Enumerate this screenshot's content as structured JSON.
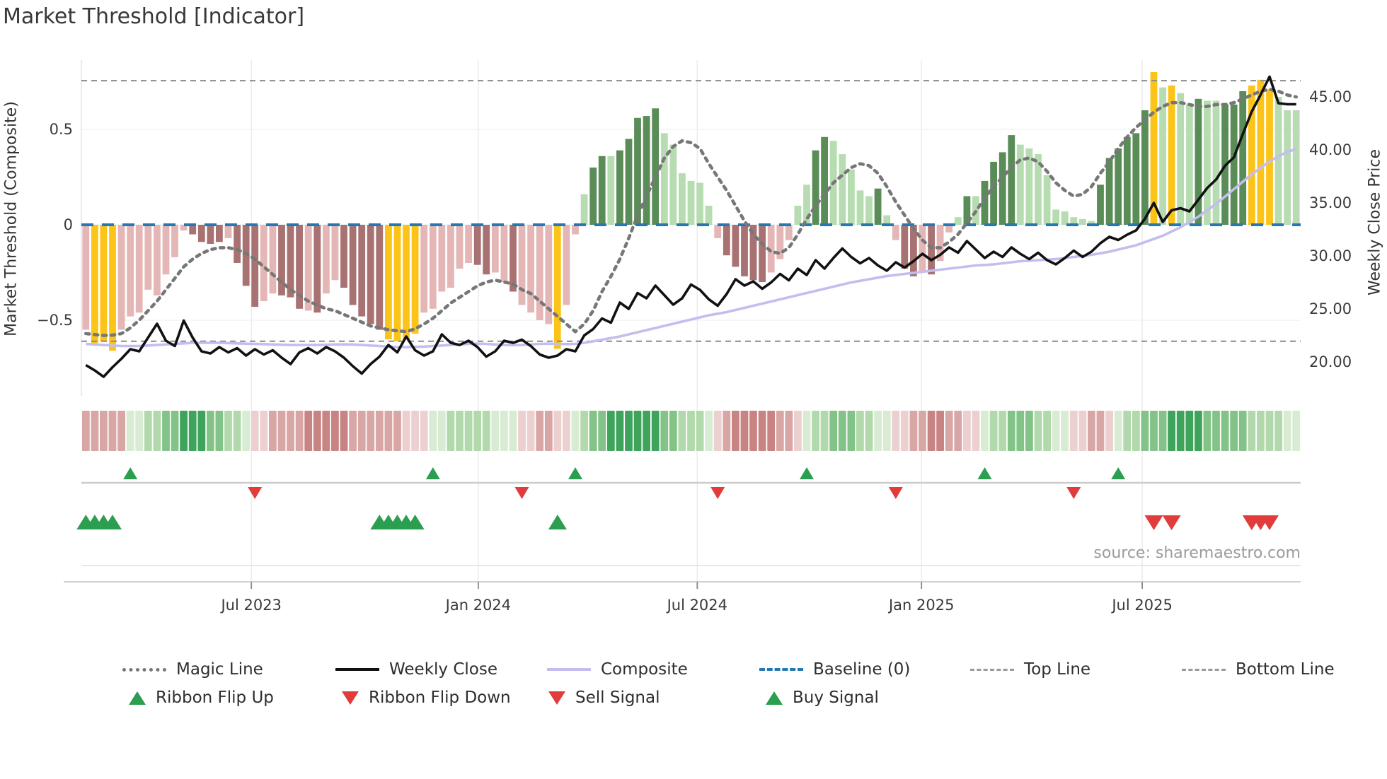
{
  "title": "Market Threshold [Indicator]",
  "source": "source: sharemaestro.com",
  "axes": {
    "left": {
      "label": "Market Threshold (Composite)",
      "ticks": [
        "0.5",
        "0",
        "−0.5"
      ],
      "tick_values": [
        0.5,
        0,
        -0.5
      ]
    },
    "right": {
      "label": "Weekly Close Price",
      "ticks": [
        "45.00",
        "40.00",
        "35.00",
        "30.00",
        "25.00",
        "20.00"
      ],
      "tick_values": [
        45,
        40,
        35,
        30,
        25,
        20
      ]
    },
    "x": {
      "ticks": [
        "Jul 2023",
        "Jan 2024",
        "Jul 2024",
        "Jan 2025",
        "Jul 2025"
      ],
      "tick_indices": [
        18.6,
        44.1,
        68.7,
        93.9,
        118.7
      ]
    }
  },
  "colors": {
    "bar": {
      "lp": "#e5b6b6",
      "dp": "#a87272",
      "lg": "#b7dcb1",
      "dg": "#5a8c58",
      "y": "#fcc419"
    },
    "ribbon": {
      "-3": "#c88383",
      "-2": "#d9a6a6",
      "-1": "#ecd0d0",
      "1": "#d8ecd3",
      "2": "#b2d9ac",
      "3": "#84c388",
      "4": "#3fa45b"
    },
    "magic_line": "#777777",
    "weekly_close": "#111111",
    "composite": "#c3bdf0",
    "baseline": "#2678b2",
    "guide_lines": "#8a8a8a",
    "signal_up": "#2b9e4f",
    "signal_down": "#e23b3b"
  },
  "chart_data": {
    "type": "combo",
    "frequency": "weekly",
    "ylim_left": [
      -0.9,
      0.87
    ],
    "ylim_right": [
      18,
      48.5
    ],
    "baseline": 0,
    "top_line": 0.755,
    "bottom_line": -0.61,
    "bars": {
      "values": [
        -0.55,
        -0.62,
        -0.61,
        -0.66,
        -0.55,
        -0.48,
        -0.46,
        -0.34,
        -0.37,
        -0.26,
        -0.17,
        -0.03,
        -0.05,
        -0.09,
        -0.1,
        -0.09,
        -0.07,
        -0.2,
        -0.32,
        -0.43,
        -0.4,
        -0.36,
        -0.37,
        -0.38,
        -0.44,
        -0.45,
        -0.46,
        -0.36,
        -0.29,
        -0.33,
        -0.42,
        -0.48,
        -0.52,
        -0.55,
        -0.6,
        -0.61,
        -0.6,
        -0.57,
        -0.46,
        -0.44,
        -0.35,
        -0.33,
        -0.23,
        -0.2,
        -0.21,
        -0.26,
        -0.25,
        -0.3,
        -0.35,
        -0.42,
        -0.46,
        -0.5,
        -0.52,
        -0.65,
        -0.42,
        -0.05,
        0.16,
        0.3,
        0.36,
        0.36,
        0.39,
        0.45,
        0.56,
        0.57,
        0.61,
        0.48,
        0.42,
        0.27,
        0.23,
        0.22,
        0.1,
        -0.07,
        -0.16,
        -0.22,
        -0.27,
        -0.29,
        -0.3,
        -0.25,
        -0.18,
        -0.08,
        0.1,
        0.21,
        0.39,
        0.46,
        0.44,
        0.37,
        0.29,
        0.18,
        0.15,
        0.19,
        0.05,
        -0.08,
        -0.23,
        -0.27,
        -0.25,
        -0.26,
        -0.19,
        -0.04,
        0.04,
        0.15,
        0.15,
        0.23,
        0.33,
        0.38,
        0.47,
        0.42,
        0.4,
        0.37,
        0.26,
        0.08,
        0.07,
        0.04,
        0.03,
        0.02,
        0.21,
        0.35,
        0.4,
        0.46,
        0.48,
        0.6,
        0.8,
        0.72,
        0.73,
        0.69,
        0.63,
        0.66,
        0.65,
        0.65,
        0.63,
        0.63,
        0.7,
        0.73,
        0.76,
        0.71,
        0.67,
        0.6,
        0.6
      ],
      "colors": [
        "lp",
        "y",
        "y",
        "y",
        "lp",
        "lp",
        "lp",
        "lp",
        "lp",
        "lp",
        "lp",
        "lp",
        "dp",
        "dp",
        "dp",
        "dp",
        "lp",
        "dp",
        "dp",
        "dp",
        "lp",
        "lp",
        "dp",
        "dp",
        "dp",
        "lp",
        "dp",
        "lp",
        "lp",
        "dp",
        "dp",
        "dp",
        "dp",
        "dp",
        "y",
        "y",
        "y",
        "y",
        "lp",
        "lp",
        "lp",
        "lp",
        "lp",
        "lp",
        "dp",
        "dp",
        "lp",
        "lp",
        "dp",
        "lp",
        "lp",
        "lp",
        "lp",
        "y",
        "lp",
        "lp",
        "lg",
        "dg",
        "dg",
        "lg",
        "dg",
        "dg",
        "dg",
        "dg",
        "dg",
        "lg",
        "lg",
        "lg",
        "lg",
        "lg",
        "lg",
        "lp",
        "dp",
        "dp",
        "dp",
        "dp",
        "dp",
        "lp",
        "lp",
        "lp",
        "lg",
        "lg",
        "dg",
        "dg",
        "lg",
        "lg",
        "lg",
        "lg",
        "lg",
        "dg",
        "lg",
        "lp",
        "dp",
        "dp",
        "lp",
        "dp",
        "lp",
        "lp",
        "lg",
        "dg",
        "lg",
        "dg",
        "dg",
        "dg",
        "dg",
        "lg",
        "lg",
        "lg",
        "lg",
        "lg",
        "lg",
        "lg",
        "lg",
        "lg",
        "dg",
        "dg",
        "dg",
        "dg",
        "dg",
        "dg",
        "y",
        "lg",
        "y",
        "lg",
        "lg",
        "dg",
        "lg",
        "lg",
        "dg",
        "dg",
        "dg",
        "y",
        "y",
        "y",
        "lg",
        "lg",
        "lg"
      ]
    },
    "magic_line": [
      -0.57,
      -0.575,
      -0.58,
      -0.578,
      -0.57,
      -0.54,
      -0.5,
      -0.45,
      -0.4,
      -0.34,
      -0.28,
      -0.22,
      -0.18,
      -0.15,
      -0.13,
      -0.12,
      -0.12,
      -0.13,
      -0.15,
      -0.18,
      -0.22,
      -0.26,
      -0.3,
      -0.34,
      -0.37,
      -0.4,
      -0.42,
      -0.44,
      -0.45,
      -0.47,
      -0.49,
      -0.51,
      -0.53,
      -0.54,
      -0.55,
      -0.555,
      -0.56,
      -0.545,
      -0.52,
      -0.49,
      -0.45,
      -0.41,
      -0.38,
      -0.35,
      -0.32,
      -0.3,
      -0.29,
      -0.3,
      -0.31,
      -0.34,
      -0.36,
      -0.4,
      -0.44,
      -0.48,
      -0.52,
      -0.56,
      -0.52,
      -0.45,
      -0.35,
      -0.27,
      -0.18,
      -0.07,
      0.05,
      0.15,
      0.25,
      0.35,
      0.41,
      0.44,
      0.43,
      0.4,
      0.32,
      0.25,
      0.18,
      0.1,
      0.02,
      -0.05,
      -0.1,
      -0.14,
      -0.15,
      -0.12,
      -0.05,
      0.03,
      0.1,
      0.16,
      0.22,
      0.26,
      0.3,
      0.32,
      0.31,
      0.27,
      0.2,
      0.12,
      0.05,
      -0.02,
      -0.08,
      -0.12,
      -0.12,
      -0.09,
      -0.05,
      0.01,
      0.07,
      0.14,
      0.2,
      0.25,
      0.3,
      0.34,
      0.35,
      0.33,
      0.28,
      0.22,
      0.18,
      0.15,
      0.16,
      0.2,
      0.27,
      0.33,
      0.4,
      0.46,
      0.51,
      0.55,
      0.59,
      0.62,
      0.64,
      0.64,
      0.63,
      0.62,
      0.62,
      0.63,
      0.63,
      0.64,
      0.66,
      0.68,
      0.7,
      0.71,
      0.7,
      0.68,
      0.67
    ],
    "weekly_close": [
      19.7,
      19.2,
      18.6,
      19.5,
      20.3,
      21.2,
      21.0,
      22.3,
      23.6,
      22.0,
      21.5,
      23.9,
      22.3,
      21.0,
      20.8,
      21.4,
      20.9,
      21.3,
      20.6,
      21.2,
      20.7,
      21.1,
      20.4,
      19.8,
      20.9,
      21.3,
      20.8,
      21.4,
      21.0,
      20.4,
      19.6,
      18.9,
      19.8,
      20.5,
      21.6,
      20.9,
      22.4,
      21.1,
      20.6,
      21.0,
      22.6,
      21.8,
      21.6,
      22.0,
      21.4,
      20.5,
      21.0,
      22.0,
      21.8,
      22.1,
      21.5,
      20.7,
      20.4,
      20.6,
      21.2,
      21.0,
      22.5,
      23.1,
      24.1,
      23.7,
      25.6,
      25.0,
      26.5,
      26.0,
      27.2,
      26.3,
      25.4,
      26.0,
      27.3,
      26.8,
      25.9,
      25.3,
      26.4,
      27.8,
      27.2,
      27.6,
      26.9,
      27.5,
      28.3,
      27.7,
      28.8,
      28.2,
      29.6,
      28.8,
      29.8,
      30.7,
      29.9,
      29.3,
      29.8,
      29.1,
      28.6,
      29.4,
      28.9,
      29.5,
      30.2,
      29.6,
      30.1,
      30.8,
      30.3,
      31.4,
      30.6,
      29.8,
      30.4,
      29.9,
      30.8,
      30.2,
      29.7,
      30.3,
      29.6,
      29.2,
      29.8,
      30.5,
      29.9,
      30.4,
      31.2,
      31.8,
      31.5,
      32.0,
      32.4,
      33.5,
      35.0,
      33.2,
      34.3,
      34.5,
      34.2,
      35.3,
      36.4,
      37.2,
      38.5,
      39.3,
      41.5,
      43.6,
      45.2,
      46.9,
      44.4,
      44.3,
      44.3
    ],
    "composite": [
      21.7,
      21.65,
      21.6,
      21.55,
      21.5,
      21.5,
      21.5,
      21.55,
      21.6,
      21.65,
      21.7,
      21.75,
      21.8,
      21.8,
      21.8,
      21.8,
      21.78,
      21.75,
      21.72,
      21.7,
      21.68,
      21.65,
      21.63,
      21.6,
      21.6,
      21.6,
      21.6,
      21.62,
      21.65,
      21.65,
      21.65,
      21.6,
      21.55,
      21.5,
      21.45,
      21.4,
      21.4,
      21.42,
      21.45,
      21.5,
      21.55,
      21.6,
      21.65,
      21.7,
      21.72,
      21.7,
      21.65,
      21.6,
      21.58,
      21.6,
      21.65,
      21.7,
      21.72,
      21.7,
      21.68,
      21.7,
      21.8,
      21.95,
      22.1,
      22.25,
      22.4,
      22.6,
      22.8,
      23.0,
      23.2,
      23.4,
      23.6,
      23.8,
      24.0,
      24.2,
      24.4,
      24.55,
      24.7,
      24.9,
      25.1,
      25.3,
      25.5,
      25.7,
      25.9,
      26.1,
      26.3,
      26.5,
      26.7,
      26.9,
      27.1,
      27.3,
      27.5,
      27.65,
      27.8,
      27.95,
      28.1,
      28.2,
      28.3,
      28.4,
      28.5,
      28.6,
      28.7,
      28.8,
      28.9,
      29.0,
      29.1,
      29.15,
      29.2,
      29.3,
      29.4,
      29.5,
      29.55,
      29.6,
      29.65,
      29.7,
      29.8,
      29.9,
      30.0,
      30.1,
      30.25,
      30.4,
      30.6,
      30.8,
      31.0,
      31.3,
      31.6,
      31.9,
      32.3,
      32.7,
      33.2,
      33.7,
      34.3,
      34.9,
      35.6,
      36.3,
      37.0,
      37.7,
      38.3,
      38.9,
      39.4,
      39.8,
      40.1
    ],
    "ribbon": [
      -2,
      -2,
      -2,
      -2,
      -2,
      1,
      1,
      2,
      2,
      3,
      3,
      4,
      4,
      4,
      3,
      3,
      2,
      2,
      1,
      -1,
      -1,
      -2,
      -2,
      -2,
      -2,
      -3,
      -3,
      -3,
      -3,
      -3,
      -2,
      -2,
      -2,
      -2,
      -2,
      -2,
      -1,
      -1,
      -1,
      1,
      1,
      2,
      2,
      2,
      2,
      2,
      1,
      1,
      1,
      -1,
      -1,
      -2,
      -2,
      -1,
      -1,
      1,
      2,
      3,
      3,
      4,
      4,
      4,
      4,
      4,
      4,
      3,
      3,
      2,
      2,
      2,
      1,
      -1,
      -2,
      -3,
      -3,
      -3,
      -3,
      -3,
      -2,
      -2,
      -1,
      1,
      2,
      2,
      3,
      3,
      3,
      2,
      2,
      1,
      1,
      -1,
      -1,
      -2,
      -2,
      -3,
      -3,
      -2,
      -2,
      -1,
      -1,
      1,
      2,
      2,
      3,
      3,
      3,
      2,
      2,
      1,
      1,
      -1,
      -1,
      -2,
      -2,
      -1,
      1,
      2,
      2,
      3,
      3,
      3,
      4,
      4,
      4,
      4,
      3,
      3,
      3,
      3,
      3,
      2,
      2,
      2,
      2,
      1,
      1
    ],
    "signals": {
      "ribbon_flip_up": [
        5,
        39,
        55,
        81,
        101,
        116
      ],
      "ribbon_flip_down": [
        19,
        49,
        71,
        91,
        111
      ],
      "buy": [
        0,
        1,
        2,
        3,
        33,
        34,
        35,
        36,
        37,
        53
      ],
      "sell": [
        120,
        122,
        131,
        132,
        133
      ]
    }
  },
  "legend": {
    "row1": [
      {
        "label": "Magic Line",
        "type": "magic"
      },
      {
        "label": "Weekly Close",
        "type": "weekly"
      },
      {
        "label": "Composite",
        "type": "composite"
      },
      {
        "label": "Baseline (0)",
        "type": "baseline"
      },
      {
        "label": "Top Line",
        "type": "thindash"
      },
      {
        "label": "Bottom Line",
        "type": "thindash"
      }
    ],
    "row2": [
      {
        "label": "Ribbon Flip Up",
        "type": "tri-up"
      },
      {
        "label": "Ribbon Flip Down",
        "type": "tri-down"
      },
      {
        "label": "Sell Signal",
        "type": "tri-down"
      },
      {
        "label": "Buy Signal",
        "type": "tri-up"
      }
    ]
  }
}
